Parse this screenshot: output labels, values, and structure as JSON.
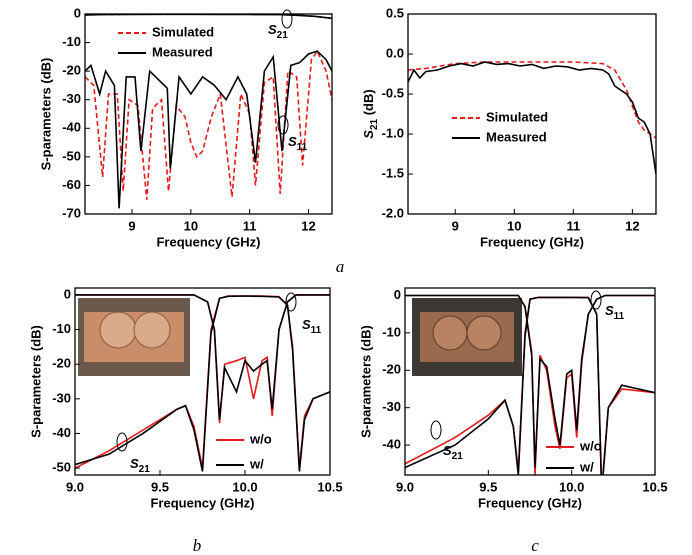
{
  "panel_labels": [
    "a",
    "b",
    "c"
  ],
  "chart_data": [
    {
      "type": "line",
      "xlabel": "Frequency (GHz)",
      "ylabel": "S-parameters (dB)",
      "xlim": [
        8.2,
        12.4
      ],
      "xticks": [
        9,
        10,
        11,
        12
      ],
      "ylim": [
        -70,
        0
      ],
      "yticks": [
        0,
        -10,
        -20,
        -30,
        -40,
        -50,
        -60,
        -70
      ],
      "annotations": [
        [
          "S",
          "21"
        ],
        [
          "S",
          "11"
        ]
      ],
      "series": [
        {
          "name": "Simulated",
          "color": "#e8191c",
          "dash": true,
          "x": [
            8.2,
            9,
            10,
            11,
            11.8,
            12.1,
            12.4
          ],
          "values": [
            -0.3,
            -0.1,
            -0.1,
            -0.1,
            -0.3,
            -0.8,
            -1.5
          ]
        },
        {
          "name": "Measured",
          "color": "#000000",
          "dash": false,
          "x": [
            8.2,
            8.5,
            9,
            9.5,
            10,
            10.5,
            11,
            11.5,
            11.8,
            12.1,
            12.4
          ],
          "values": [
            -0.3,
            -0.2,
            -0.15,
            -0.1,
            -0.12,
            -0.15,
            -0.18,
            -0.2,
            -0.45,
            -0.8,
            -1.5
          ]
        },
        {
          "color": "#e8191c",
          "dash": true,
          "x": [
            8.2,
            8.35,
            8.5,
            8.6,
            8.75,
            8.85,
            8.95,
            9.1,
            9.25,
            9.35,
            9.5,
            9.62,
            9.75,
            9.9,
            10.0,
            10.1,
            10.2,
            10.35,
            10.5,
            10.7,
            10.85,
            11.0,
            11.1,
            11.25,
            11.4,
            11.52,
            11.65,
            11.8,
            11.9,
            12.05,
            12.15,
            12.3,
            12.4
          ],
          "values": [
            -22,
            -25,
            -57,
            -28,
            -28,
            -62,
            -30,
            -32,
            -65,
            -33,
            -30,
            -62,
            -32,
            -36,
            -45,
            -50,
            -48,
            -36,
            -28,
            -64,
            -28,
            -35,
            -60,
            -24,
            -22,
            -63,
            -20,
            -22,
            -53,
            -16,
            -13,
            -20,
            -30
          ]
        },
        {
          "color": "#000000",
          "dash": false,
          "x": [
            8.2,
            8.3,
            8.45,
            8.55,
            8.7,
            8.78,
            8.9,
            9.05,
            9.15,
            9.3,
            9.45,
            9.6,
            9.65,
            9.8,
            10.0,
            10.2,
            10.4,
            10.6,
            10.8,
            10.95,
            11.1,
            11.25,
            11.4,
            11.55,
            11.7,
            11.85,
            12.0,
            12.15,
            12.3,
            12.4
          ],
          "values": [
            -20,
            -18,
            -28,
            -20,
            -25,
            -68,
            -22,
            -22,
            -48,
            -20,
            -23,
            -26,
            -54,
            -22,
            -28,
            -22,
            -25,
            -30,
            -22,
            -28,
            -52,
            -20,
            -15,
            -48,
            -18,
            -17,
            -14,
            -13,
            -16,
            -20
          ]
        }
      ]
    },
    {
      "type": "line",
      "xlabel": "Frequency (GHz)",
      "ylabel": [
        "S",
        "21",
        " (dB)"
      ],
      "xlim": [
        8.2,
        12.4
      ],
      "xticks": [
        9,
        10,
        11,
        12
      ],
      "ylim": [
        -2,
        0.5
      ],
      "yticks": [
        0.5,
        {
          "value": 0,
          "label": "0.0"
        },
        -0.5,
        {
          "value": -1,
          "label": "-1.0"
        },
        -1.5,
        {
          "value": -2,
          "label": "-2.0"
        }
      ],
      "series": [
        {
          "name": "Simulated",
          "color": "#e8191c",
          "dash": true,
          "x": [
            8.2,
            8.5,
            9,
            9.5,
            10,
            10.5,
            11,
            11.5,
            11.7,
            11.9,
            12.0,
            12.1,
            12.2,
            12.3,
            12.4
          ],
          "values": [
            -0.2,
            -0.18,
            -0.12,
            -0.1,
            -0.1,
            -0.1,
            -0.1,
            -0.12,
            -0.2,
            -0.45,
            -0.65,
            -0.85,
            -0.95,
            -1.0,
            -1.05
          ]
        },
        {
          "name": "Measured",
          "color": "#000000",
          "dash": false,
          "x": [
            8.2,
            8.3,
            8.4,
            8.5,
            8.7,
            8.9,
            9.1,
            9.3,
            9.5,
            9.7,
            9.9,
            10.1,
            10.3,
            10.5,
            10.7,
            10.9,
            11.1,
            11.3,
            11.5,
            11.6,
            11.7,
            11.8,
            11.9,
            12.0,
            12.1,
            12.2,
            12.3,
            12.4
          ],
          "values": [
            -0.35,
            -0.2,
            -0.3,
            -0.22,
            -0.2,
            -0.15,
            -0.12,
            -0.15,
            -0.1,
            -0.13,
            -0.12,
            -0.15,
            -0.13,
            -0.18,
            -0.15,
            -0.16,
            -0.2,
            -0.18,
            -0.2,
            -0.25,
            -0.4,
            -0.45,
            -0.5,
            -0.6,
            -0.8,
            -0.85,
            -1.0,
            -1.5
          ]
        }
      ]
    },
    {
      "type": "line",
      "xlabel": "Frequency (GHz)",
      "ylabel": "S-parameters (dB)",
      "xlim": [
        9.0,
        10.5
      ],
      "xticks": [
        {
          "value": 9,
          "label": "9.0"
        },
        9.5,
        {
          "value": 10,
          "label": "10.0"
        },
        10.5
      ],
      "ylim": [
        -52,
        2
      ],
      "yticks": [
        0,
        -10,
        -20,
        -30,
        -40,
        -50
      ],
      "annotations": [
        [
          "S",
          "11"
        ],
        [
          "S",
          "21"
        ]
      ],
      "series": [
        {
          "name": "w/o",
          "color": "#e8191c",
          "dash": false,
          "x": [
            9.0,
            9.2,
            9.4,
            9.6,
            9.65,
            9.7,
            9.75,
            9.8,
            9.85,
            9.9,
            10.0,
            10.1,
            10.2,
            10.25,
            10.28,
            10.32,
            10.35,
            10.4,
            10.5
          ],
          "values": [
            -50,
            -45,
            -39,
            -33,
            -32,
            -38,
            -50,
            -10,
            -1,
            -0.3,
            -0.3,
            -0.3,
            -0.5,
            -3,
            -15,
            -50,
            -35,
            -30,
            -28
          ]
        },
        {
          "name": "w/",
          "color": "#000000",
          "dash": false,
          "x": [
            9.0,
            9.2,
            9.4,
            9.6,
            9.65,
            9.7,
            9.75,
            9.8,
            9.85,
            9.9,
            10.0,
            10.1,
            10.2,
            10.25,
            10.28,
            10.32,
            10.35,
            10.4,
            10.5
          ],
          "values": [
            -49,
            -46,
            -40,
            -33,
            -32,
            -39,
            -51,
            -11,
            -1,
            -0.4,
            -0.3,
            -0.4,
            -0.6,
            -3,
            -16,
            -51,
            -36,
            -30,
            -28
          ]
        },
        {
          "color": "#e8191c",
          "dash": false,
          "x": [
            9.0,
            9.7,
            9.78,
            9.82,
            9.85,
            9.88,
            9.95,
            10.0,
            10.05,
            10.1,
            10.13,
            10.16,
            10.2,
            10.25,
            10.3,
            10.5
          ],
          "values": [
            0,
            0,
            -2,
            -10,
            -37,
            -20,
            -19,
            -18,
            -30,
            -19,
            -18,
            -35,
            -10,
            -2,
            0,
            0
          ]
        },
        {
          "color": "#000000",
          "dash": false,
          "x": [
            9.0,
            9.7,
            9.78,
            9.82,
            9.85,
            9.88,
            9.95,
            10.0,
            10.05,
            10.1,
            10.13,
            10.16,
            10.2,
            10.25,
            10.3,
            10.5
          ],
          "values": [
            0,
            0,
            -2,
            -10,
            -36,
            -21,
            -28,
            -19,
            -22,
            -20,
            -19,
            -33,
            -10,
            -2,
            0,
            0
          ]
        }
      ]
    },
    {
      "type": "line",
      "xlabel": "Frequency (GHz)",
      "ylabel": "S-parameters (dB)",
      "xlim": [
        9.0,
        10.5
      ],
      "xticks": [
        {
          "value": 9,
          "label": "9.0"
        },
        9.5,
        {
          "value": 10,
          "label": "10.0"
        },
        10.5
      ],
      "ylim": [
        -48,
        2
      ],
      "yticks": [
        0,
        -10,
        -20,
        -30,
        -40
      ],
      "annotations": [
        [
          "S",
          "11"
        ],
        [
          "S",
          "21"
        ]
      ],
      "series": [
        {
          "name": "w/o",
          "color": "#e8191c",
          "dash": false,
          "x": [
            9.0,
            9.3,
            9.5,
            9.6,
            9.65,
            9.68,
            9.72,
            9.75,
            9.8,
            10.0,
            10.1,
            10.15,
            10.18,
            10.22,
            10.3,
            10.5
          ],
          "values": [
            -45,
            -38,
            -32,
            -28,
            -35,
            -47,
            -10,
            -1,
            -0.5,
            -0.5,
            -0.5,
            -5,
            -52,
            -30,
            -25,
            -26
          ]
        },
        {
          "name": "w/",
          "color": "#000000",
          "dash": false,
          "x": [
            9.0,
            9.3,
            9.5,
            9.6,
            9.65,
            9.68,
            9.72,
            9.75,
            9.8,
            10.0,
            10.1,
            10.15,
            10.18,
            10.22,
            10.3,
            10.5
          ],
          "values": [
            -46,
            -40,
            -33,
            -28,
            -35,
            -48,
            -11,
            -1,
            -0.5,
            -0.5,
            -0.6,
            -5,
            -53,
            -30,
            -24,
            -26
          ]
        },
        {
          "color": "#e8191c",
          "dash": false,
          "x": [
            9.0,
            9.68,
            9.72,
            9.76,
            9.78,
            9.81,
            9.85,
            9.9,
            9.93,
            9.97,
            10.0,
            10.03,
            10.06,
            10.1,
            10.15,
            10.2,
            10.5
          ],
          "values": [
            0,
            0,
            -3,
            -15,
            -48,
            -16,
            -20,
            -35,
            -41,
            -22,
            -21,
            -38,
            -18,
            -5,
            -1,
            0,
            0
          ]
        },
        {
          "color": "#000000",
          "dash": false,
          "x": [
            9.0,
            9.68,
            9.72,
            9.76,
            9.78,
            9.81,
            9.85,
            9.9,
            9.93,
            9.97,
            10.0,
            10.03,
            10.06,
            10.1,
            10.15,
            10.2,
            10.5
          ],
          "values": [
            0,
            0,
            -3,
            -16,
            -46,
            -17,
            -19,
            -33,
            -40,
            -21,
            -20,
            -36,
            -17,
            -5,
            -1,
            0,
            0
          ]
        }
      ]
    }
  ]
}
